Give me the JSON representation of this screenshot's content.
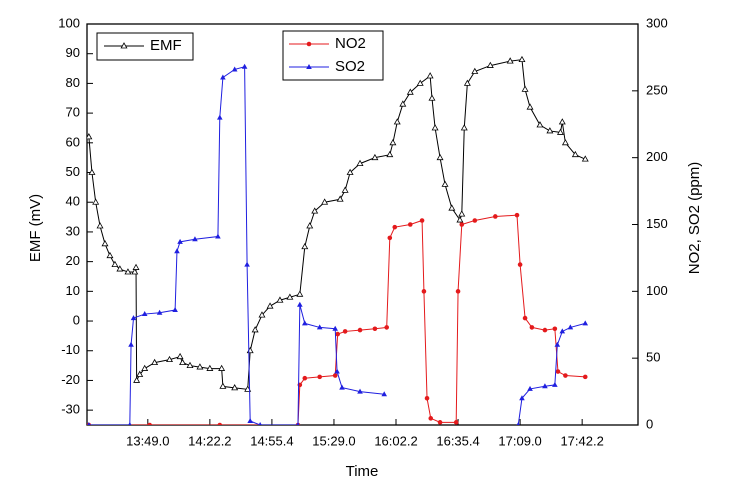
{
  "chart_data": {
    "type": "line",
    "xlabel": "Time",
    "ylabel": "EMF (mV)",
    "y2label": "NO2, SO2 (ppm)",
    "xlim": [
      -0.98,
      7.9
    ],
    "xticks": [
      {
        "value": 0,
        "label": "13:49.0"
      },
      {
        "value": 1,
        "label": "14:22.2"
      },
      {
        "value": 2,
        "label": "14:55.4"
      },
      {
        "value": 3,
        "label": "15:29.0"
      },
      {
        "value": 4,
        "label": "16:02.2"
      },
      {
        "value": 5,
        "label": "16:35.4"
      },
      {
        "value": 6,
        "label": "17:09.0"
      },
      {
        "value": 7,
        "label": "17:42.2"
      }
    ],
    "ylim": [
      -35,
      100
    ],
    "yticks": [
      -30,
      -20,
      -10,
      0,
      10,
      20,
      30,
      40,
      50,
      60,
      70,
      80,
      90,
      100
    ],
    "y2lim": [
      0,
      300
    ],
    "y2ticks": [
      0,
      50,
      100,
      150,
      200,
      250,
      300
    ],
    "series": [
      {
        "name": "EMF",
        "color": "#000000",
        "marker": "triangle-open",
        "x": [
          -0.95,
          -0.9,
          -0.84,
          -0.77,
          -0.69,
          -0.61,
          -0.53,
          -0.45,
          -0.32,
          -0.21,
          -0.19,
          -0.18,
          -0.13,
          -0.05,
          0.11,
          0.35,
          0.52,
          0.56,
          0.68,
          0.84,
          1.0,
          1.19,
          1.21,
          1.4,
          1.61,
          1.65,
          1.73,
          1.84,
          1.97,
          2.13,
          2.29,
          2.45,
          2.53,
          2.61,
          2.69,
          2.85,
          3.1,
          3.18,
          3.26,
          3.42,
          3.66,
          3.9,
          3.95,
          4.02,
          4.11,
          4.23,
          4.39,
          4.55,
          4.58,
          4.63,
          4.71,
          4.79,
          4.9,
          5.03,
          5.06,
          5.1,
          5.15,
          5.27,
          5.52,
          5.84,
          6.03,
          6.08,
          6.16,
          6.32,
          6.48,
          6.65,
          6.68,
          6.73,
          6.89,
          7.05
        ],
        "values": [
          62,
          50,
          40,
          32,
          26,
          22,
          19,
          17.5,
          16.5,
          16.5,
          18,
          -20,
          -18,
          -16,
          -14,
          -13,
          -12,
          -14,
          -15,
          -15.5,
          -16,
          -16,
          -22,
          -22.5,
          -23,
          -10,
          -3,
          2,
          5,
          7,
          8,
          9,
          25,
          32,
          37,
          40,
          41,
          44,
          50,
          53,
          55,
          56,
          60,
          67,
          73,
          77,
          80,
          82.5,
          75,
          65,
          55,
          46,
          38,
          34,
          36,
          65,
          80,
          84,
          86,
          87.5,
          88,
          78,
          72,
          66,
          64,
          63.5,
          67,
          60,
          56,
          54.5
        ]
      },
      {
        "name": "NO2",
        "color": "#e41a1c",
        "marker": "circle",
        "axis": "y2",
        "x": [
          -0.95,
          0.03,
          1.16,
          2.42,
          2.45,
          2.53,
          2.77,
          3.02,
          3.06,
          3.18,
          3.42,
          3.66,
          3.85,
          3.9,
          3.98,
          4.23,
          4.42,
          4.45,
          4.5,
          4.56,
          4.71,
          4.97,
          5.0,
          5.06,
          5.27,
          5.6,
          5.95,
          6.0,
          6.08,
          6.19,
          6.4,
          6.56,
          6.61,
          6.73,
          7.05
        ],
        "values": [
          0,
          0,
          0,
          0,
          30,
          35,
          36,
          37,
          68,
          70,
          71,
          72,
          73,
          140,
          148,
          150,
          153,
          100,
          20,
          5,
          2,
          2,
          100,
          150,
          153,
          156,
          157,
          120,
          80,
          73,
          71,
          72,
          40,
          37,
          36
        ]
      },
      {
        "name": "SO2",
        "color": "#1f1fe0",
        "marker": "triangle",
        "axis": "y2",
        "x": [
          -0.95,
          -0.29,
          -0.27,
          -0.23,
          -0.05,
          0.19,
          0.44,
          0.47,
          0.52,
          0.76,
          1.13,
          1.16,
          1.21,
          1.4,
          1.56,
          1.6,
          1.65,
          1.81,
          2.42,
          2.45,
          2.53,
          2.77,
          3.02,
          3.05,
          3.13,
          3.42,
          3.81,
          4.5,
          5.97,
          6.03,
          6.16,
          6.4,
          6.56,
          6.6,
          6.68,
          6.81,
          7.05
        ],
        "values": [
          0,
          0,
          60,
          80,
          83,
          84,
          86,
          130,
          137,
          139,
          141,
          230,
          260,
          266,
          268,
          120,
          3,
          0,
          0,
          90,
          76,
          73,
          72,
          40,
          28,
          25,
          23,
          null,
          0,
          20,
          27,
          29,
          30,
          60,
          70,
          73,
          76
        ]
      }
    ]
  }
}
